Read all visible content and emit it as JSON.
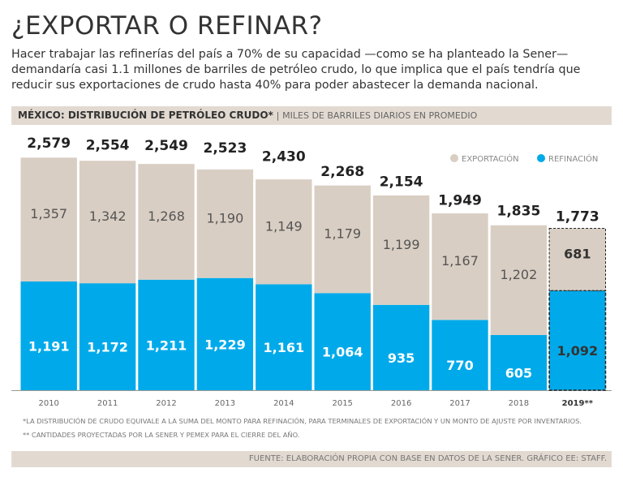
{
  "chart_data": {
    "type": "stacked_bar",
    "title": "¿EXPORTAR O REFINAR?",
    "subtitle": "Hacer trabajar las refinerías del país a 70% de su capacidad —como se ha planteado la Sener— demandaría casi 1.1 millones de barriles de petróleo crudo, lo que implica que el país tendría que reducir sus exportaciones de crudo hasta 40% para poder abastecer la demanda nacional.",
    "chart_title": "MÉXICO: DISTRIBUCIÓN DE PETRÓLEO CRUDO*",
    "units": "MILES DE BARRILES DIARIOS EN PROMEDIO",
    "categories": [
      "2010",
      "2011",
      "2012",
      "2013",
      "2014",
      "2015",
      "2016",
      "2017",
      "2018",
      "2019**"
    ],
    "series": [
      {
        "name": "REFINACIÓN",
        "color": "#00aaea",
        "values": [
          1191,
          1172,
          1211,
          1229,
          1161,
          1064,
          935,
          770,
          605,
          1092
        ],
        "value_labels": [
          "1,191",
          "1,172",
          "1,211",
          "1,229",
          "1,161",
          "1,064",
          "935",
          "770",
          "605",
          "1,092"
        ]
      },
      {
        "name": "EXPORTACIÓN",
        "color": "#d9cec3",
        "values": [
          1357,
          1342,
          1268,
          1190,
          1149,
          1179,
          1199,
          1167,
          1202,
          681
        ],
        "value_labels": [
          "1,357",
          "1,342",
          "1,268",
          "1,190",
          "1,149",
          "1,179",
          "1,199",
          "1,167",
          "1,202",
          "681"
        ]
      }
    ],
    "totals": {
      "values": [
        2579,
        2554,
        2549,
        2523,
        2430,
        2268,
        2154,
        1949,
        1835,
        1773
      ],
      "value_labels": [
        "2,579",
        "2,554",
        "2,549",
        "2,523",
        "2,430",
        "2,268",
        "2,154",
        "1,949",
        "1,835",
        "1,773"
      ]
    },
    "legend_position": "upper right",
    "notes": [
      "*LA DISTRIBUCIÓN DE CRUDO EQUIVALE A LA SUMA DEL MONTO PARA REFINACIÓN, PARA TERMINALES DE EXPORTACIÓN Y UN MONTO DE AJUSTE POR INVENTARIOS.",
      "** CANTIDADES PROYECTADAS POR LA SENER Y PEMEX PARA EL CIERRE DEL AÑO."
    ],
    "source": "FUENTE: ELABORACIÓN PROPIA CON BASE EN DATOS DE LA SENER. GRÁFICO EE: STAFF."
  }
}
